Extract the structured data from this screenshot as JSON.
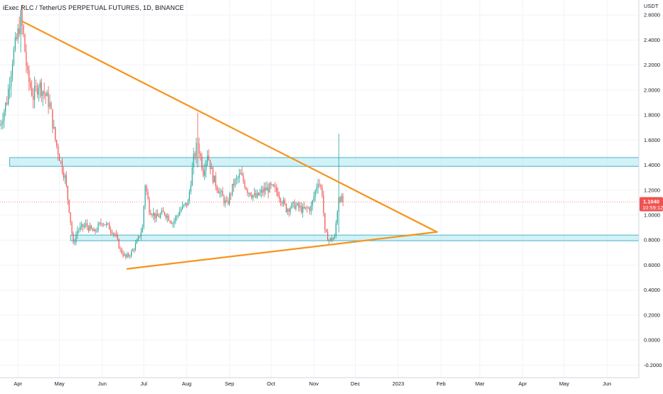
{
  "header": {
    "title": "iExec RLC / TetherUS PERPETUAL FUTURES, 1D, BINANCE"
  },
  "colors": {
    "up": "#26a69a",
    "down": "#ef5350",
    "trendline": "#f7931a",
    "zone_fill": "#b2ebf2",
    "zone_stroke": "#4fb3c7",
    "price_tag": "#ef5350",
    "grid": "#f0f3fa"
  },
  "chart_data": {
    "type": "candlestick",
    "title": "iExec RLC / TetherUS PERPETUAL FUTURES, 1D, BINANCE",
    "y_unit": "USDT",
    "ylim": [
      -0.3,
      2.72
    ],
    "yticks": [
      {
        "label": "2.6000",
        "value": 2.6
      },
      {
        "label": "2.4000",
        "value": 2.4
      },
      {
        "label": "2.2000",
        "value": 2.2
      },
      {
        "label": "2.0000",
        "value": 2.0
      },
      {
        "label": "1.8000",
        "value": 1.8
      },
      {
        "label": "1.6000",
        "value": 1.6
      },
      {
        "label": "1.4000",
        "value": 1.4
      },
      {
        "label": "1.2000",
        "value": 1.2
      },
      {
        "label": "1.0000",
        "value": 1.0
      },
      {
        "label": "0.8000",
        "value": 0.8
      },
      {
        "label": "0.6000",
        "value": 0.6
      },
      {
        "label": "0.4000",
        "value": 0.4
      },
      {
        "label": "0.2000",
        "value": 0.2
      },
      {
        "label": "0.0000",
        "value": 0.0
      },
      {
        "label": "-0.2000",
        "value": -0.2
      }
    ],
    "xlim": [
      "2022-03-19",
      "2023-06-24"
    ],
    "xticks": [
      {
        "label": "Apr",
        "date": "2022-04-01"
      },
      {
        "label": "May",
        "date": "2022-05-01"
      },
      {
        "label": "Jun",
        "date": "2022-06-01"
      },
      {
        "label": "Jul",
        "date": "2022-07-01"
      },
      {
        "label": "Aug",
        "date": "2022-08-01"
      },
      {
        "label": "Sep",
        "date": "2022-09-01"
      },
      {
        "label": "Oct",
        "date": "2022-10-01"
      },
      {
        "label": "Nov",
        "date": "2022-11-01"
      },
      {
        "label": "Dec",
        "date": "2022-12-01"
      },
      {
        "label": "2023",
        "date": "2023-01-01"
      },
      {
        "label": "Feb",
        "date": "2023-02-01"
      },
      {
        "label": "Mar",
        "date": "2023-03-01"
      },
      {
        "label": "Apr",
        "date": "2023-04-01"
      },
      {
        "label": "May",
        "date": "2023-05-01"
      },
      {
        "label": "Jun",
        "date": "2023-06-01"
      }
    ],
    "close_anchors": [
      [
        "2022-03-19",
        1.72
      ],
      [
        "2022-03-24",
        1.92
      ],
      [
        "2022-03-28",
        2.25
      ],
      [
        "2022-04-01",
        2.45
      ],
      [
        "2022-04-03",
        2.58
      ],
      [
        "2022-04-05",
        2.42
      ],
      [
        "2022-04-08",
        2.1
      ],
      [
        "2022-04-12",
        1.95
      ],
      [
        "2022-04-16",
        2.05
      ],
      [
        "2022-04-20",
        1.98
      ],
      [
        "2022-04-24",
        1.88
      ],
      [
        "2022-04-28",
        1.6
      ],
      [
        "2022-05-02",
        1.42
      ],
      [
        "2022-05-05",
        1.3
      ],
      [
        "2022-05-08",
        1.05
      ],
      [
        "2022-05-11",
        0.76
      ],
      [
        "2022-05-14",
        0.88
      ],
      [
        "2022-05-20",
        0.92
      ],
      [
        "2022-05-26",
        0.86
      ],
      [
        "2022-06-01",
        0.95
      ],
      [
        "2022-06-06",
        0.9
      ],
      [
        "2022-06-10",
        0.85
      ],
      [
        "2022-06-14",
        0.72
      ],
      [
        "2022-06-18",
        0.66
      ],
      [
        "2022-06-22",
        0.7
      ],
      [
        "2022-06-26",
        0.78
      ],
      [
        "2022-06-30",
        0.9
      ],
      [
        "2022-07-02",
        1.25
      ],
      [
        "2022-07-05",
        1.05
      ],
      [
        "2022-07-10",
        0.98
      ],
      [
        "2022-07-16",
        1.02
      ],
      [
        "2022-07-22",
        0.94
      ],
      [
        "2022-07-28",
        1.05
      ],
      [
        "2022-08-02",
        1.1
      ],
      [
        "2022-08-06",
        1.45
      ],
      [
        "2022-08-09",
        1.58
      ],
      [
        "2022-08-13",
        1.35
      ],
      [
        "2022-08-16",
        1.5
      ],
      [
        "2022-08-20",
        1.3
      ],
      [
        "2022-08-25",
        1.18
      ],
      [
        "2022-08-30",
        1.08
      ],
      [
        "2022-09-04",
        1.25
      ],
      [
        "2022-09-09",
        1.32
      ],
      [
        "2022-09-14",
        1.2
      ],
      [
        "2022-09-20",
        1.14
      ],
      [
        "2022-09-26",
        1.2
      ],
      [
        "2022-10-01",
        1.22
      ],
      [
        "2022-10-06",
        1.18
      ],
      [
        "2022-10-12",
        1.05
      ],
      [
        "2022-10-18",
        1.08
      ],
      [
        "2022-10-24",
        1.04
      ],
      [
        "2022-10-30",
        1.06
      ],
      [
        "2022-11-04",
        1.28
      ],
      [
        "2022-11-07",
        1.18
      ],
      [
        "2022-11-09",
        0.86
      ],
      [
        "2022-11-12",
        0.8
      ],
      [
        "2022-11-16",
        0.82
      ],
      [
        "2022-11-19",
        1.16
      ],
      [
        "2022-11-22",
        1.104
      ]
    ],
    "special_bars": [
      {
        "date": "2022-11-19",
        "high": 1.65,
        "low": 0.86
      },
      {
        "date": "2022-08-09",
        "high": 1.82,
        "low": 1.38
      },
      {
        "date": "2022-04-03",
        "high": 2.62,
        "low": 2.3
      }
    ],
    "last_date": "2022-11-22",
    "last_price": 1.104,
    "last_price_label": "1.1040",
    "countdown_label": "10:59:12",
    "zones": [
      {
        "name": "resistance-zone",
        "start": "2022-03-26",
        "end": "2023-06-24",
        "top": 1.46,
        "bottom": 1.39
      },
      {
        "name": "support-zone",
        "start": "2022-05-09",
        "end": "2023-06-24",
        "top": 0.84,
        "bottom": 0.795
      }
    ],
    "trendlines": [
      {
        "name": "upper-trendline",
        "from": [
          "2022-04-04",
          2.55
        ],
        "to": [
          "2023-01-29",
          0.865
        ]
      },
      {
        "name": "lower-trendline",
        "from": [
          "2022-06-19",
          0.57
        ],
        "to": [
          "2023-01-29",
          0.865
        ]
      }
    ]
  }
}
